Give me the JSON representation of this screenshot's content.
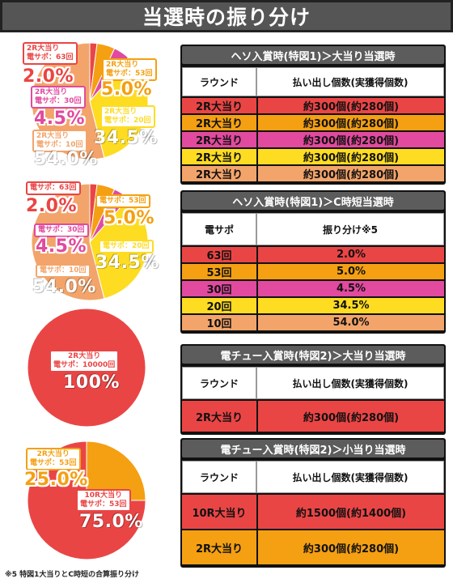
{
  "title": "当選時の振り分け",
  "colors": {
    "red": "#ea4545",
    "orange": "#f4a012",
    "pink": "#e14a9e",
    "yellow": "#fddc22",
    "salmon": "#f3a46a"
  },
  "pie1": {
    "slices": [
      {
        "line1": "2R大当り",
        "line2": "電サポ：63回",
        "pct": "2.0%",
        "value": 2.0,
        "color": "red"
      },
      {
        "line1": "2R大当り",
        "line2": "電サポ：53回",
        "pct": "5.0%",
        "value": 5.0,
        "color": "orange"
      },
      {
        "line1": "2R大当り",
        "line2": "電サポ：30回",
        "pct": "4.5%",
        "value": 4.5,
        "color": "pink"
      },
      {
        "line1": "2R大当り",
        "line2": "電サポ：20回",
        "pct": "34.5%",
        "value": 34.5,
        "color": "yellow"
      },
      {
        "line1": "2R大当り",
        "line2": "電サポ：10回",
        "pct": "54.0%",
        "value": 54.0,
        "color": "salmon"
      }
    ]
  },
  "pie2": {
    "slices": [
      {
        "line1": "電サポ：63回",
        "pct": "2.0%",
        "value": 2.0,
        "color": "red"
      },
      {
        "line1": "電サポ：53回",
        "pct": "5.0%",
        "value": 5.0,
        "color": "orange"
      },
      {
        "line1": "電サポ：30回",
        "pct": "4.5%",
        "value": 4.5,
        "color": "pink"
      },
      {
        "line1": "電サポ：20回",
        "pct": "34.5%",
        "value": 34.5,
        "color": "yellow"
      },
      {
        "line1": "電サポ：10回",
        "pct": "54.0%",
        "value": 54.0,
        "color": "salmon"
      }
    ]
  },
  "pie3": {
    "slices": [
      {
        "line1": "2R大当り",
        "line2": "電サポ：10000回",
        "pct": "100%",
        "value": 100,
        "color": "red"
      }
    ]
  },
  "pie4": {
    "slices": [
      {
        "line1": "2R大当り",
        "line2": "電サポ：53回",
        "pct": "25.0%",
        "value": 25.0,
        "color": "orange"
      },
      {
        "line1": "10R大当り",
        "line2": "電サポ：53回",
        "pct": "75.0%",
        "value": 75.0,
        "color": "red"
      }
    ]
  },
  "table1": {
    "heading": "ヘソ入賞時(特図1)＞大当り当選時",
    "col1": "ラウンド",
    "col2": "払い出し個数(実獲得個数)",
    "rows": [
      {
        "a": "2R大当り",
        "b": "約300個(約280個)"
      },
      {
        "a": "2R大当り",
        "b": "約300個(約280個)"
      },
      {
        "a": "2R大当り",
        "b": "約300個(約280個)"
      },
      {
        "a": "2R大当り",
        "b": "約300個(約280個)"
      },
      {
        "a": "2R大当り",
        "b": "約300個(約280個)"
      }
    ]
  },
  "table2": {
    "heading": "ヘソ入賞時(特図1)＞C時短当選時",
    "col1": "電サポ",
    "col2": "振り分け※5",
    "rows": [
      {
        "a": "63回",
        "b": "2.0%"
      },
      {
        "a": "53回",
        "b": "5.0%"
      },
      {
        "a": "30回",
        "b": "4.5%"
      },
      {
        "a": "20回",
        "b": "34.5%"
      },
      {
        "a": "10回",
        "b": "54.0%"
      }
    ]
  },
  "table3": {
    "heading": "電チュー入賞時(特図2)＞大当り当選時",
    "col1": "ラウンド",
    "col2": "払い出し個数(実獲得個数)",
    "rows": [
      {
        "a": "2R大当り",
        "b": "約300個(約280個)"
      }
    ]
  },
  "table4": {
    "heading": "電チュー入賞時(特図2)＞小当り当選時",
    "col1": "ラウンド",
    "col2": "払い出し個数(実獲得個数)",
    "rows": [
      {
        "a": "10R大当り",
        "b": "約1500個(約1400個)"
      },
      {
        "a": "2R大当り",
        "b": "約300個(約280個)"
      }
    ]
  },
  "footnote": "※5 特図1大当りとC時短の合算振り分け"
}
